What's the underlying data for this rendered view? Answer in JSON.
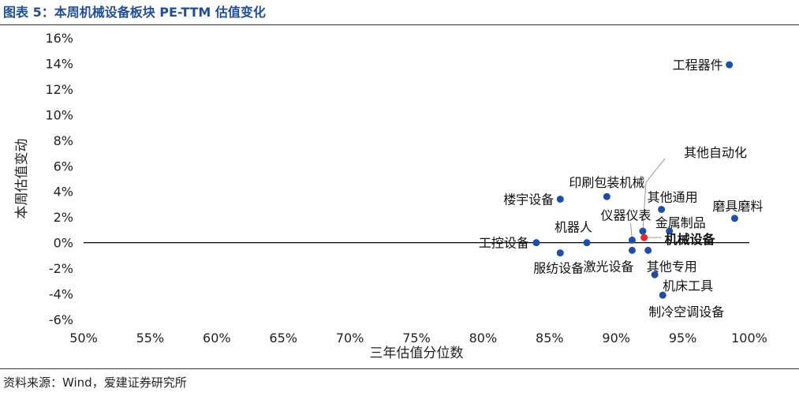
{
  "title": "图表 5：本周机械设备板块 PE-TTM 估值变化",
  "source": "资料来源：Wind，爱建证券研究所",
  "chart_data": {
    "type": "scatter",
    "xlabel": "三年估值分位数",
    "ylabel": "本周估值变动",
    "xlim": [
      0.5,
      1.0
    ],
    "ylim": [
      -0.06,
      0.16
    ],
    "x_ticks": [
      0.5,
      0.55,
      0.6,
      0.65,
      0.7,
      0.75,
      0.8,
      0.85,
      0.9,
      0.95,
      1.0
    ],
    "x_tick_labels": [
      "50%",
      "55%",
      "60%",
      "65%",
      "70%",
      "75%",
      "80%",
      "85%",
      "90%",
      "95%",
      "100%"
    ],
    "y_ticks": [
      0.16,
      0.14,
      0.12,
      0.1,
      0.08,
      0.06,
      0.04,
      0.02,
      0.0,
      -0.02,
      -0.04,
      -0.06
    ],
    "y_tick_labels": [
      "16%",
      "14%",
      "12%",
      "10%",
      "8%",
      "6%",
      "4%",
      "2%",
      "0%",
      "-2%",
      "-4%",
      "-6%"
    ],
    "colors": {
      "point": "#1f4ea8",
      "highlight": "#e8262c"
    },
    "points": [
      {
        "name": "工程器件",
        "x": 0.985,
        "y": 0.139,
        "highlight": false
      },
      {
        "name": "其他自动化",
        "x": 0.92,
        "y": 0.009,
        "highlight": false
      },
      {
        "name": "印刷包装机械",
        "x": 0.893,
        "y": 0.036,
        "highlight": false
      },
      {
        "name": "楼宇设备",
        "x": 0.858,
        "y": 0.034,
        "highlight": false
      },
      {
        "name": "其他通用",
        "x": 0.934,
        "y": 0.026,
        "highlight": false
      },
      {
        "name": "磨具磨料",
        "x": 0.989,
        "y": 0.019,
        "highlight": false
      },
      {
        "name": "仪器仪表",
        "x": 0.912,
        "y": 0.002,
        "highlight": false
      },
      {
        "name": "金属制品",
        "x": 0.94,
        "y": 0.009,
        "highlight": false
      },
      {
        "name": "机器人",
        "x": 0.878,
        "y": 0.0,
        "highlight": false
      },
      {
        "name": "工控设备",
        "x": 0.84,
        "y": 0.0,
        "highlight": false
      },
      {
        "name": "机械设备",
        "x": 0.921,
        "y": 0.004,
        "highlight": true
      },
      {
        "name": "服纺设备",
        "x": 0.858,
        "y": -0.008,
        "highlight": false
      },
      {
        "name": "激光设备",
        "x": 0.912,
        "y": -0.006,
        "highlight": false
      },
      {
        "name": "其他专用",
        "x": 0.924,
        "y": -0.006,
        "highlight": false
      },
      {
        "name": "机床工具",
        "x": 0.929,
        "y": -0.025,
        "highlight": false
      },
      {
        "name": "制冷空调设备",
        "x": 0.935,
        "y": -0.041,
        "highlight": false
      }
    ]
  }
}
